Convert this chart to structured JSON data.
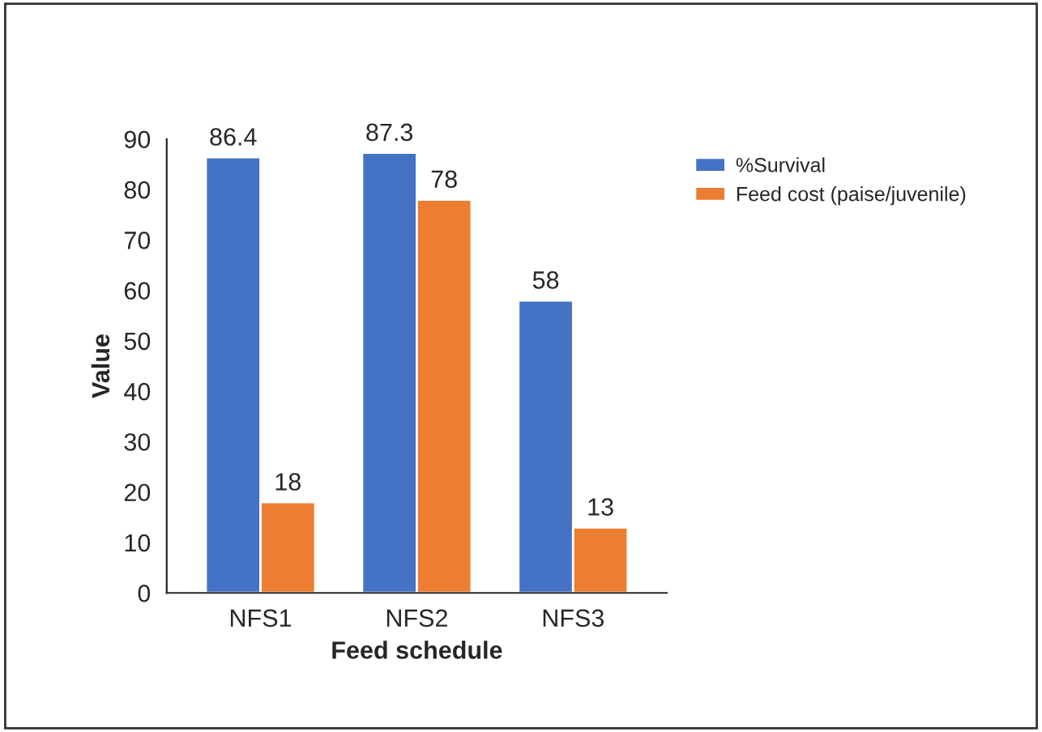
{
  "chart_data": {
    "type": "bar",
    "xlabel": "Feed schedule",
    "ylabel": "Value",
    "categories": [
      "NFS1",
      "NFS2",
      "NFS3"
    ],
    "series": [
      {
        "name": "%Survival",
        "color": "#4472c4",
        "values": [
          86.4,
          87.3,
          58
        ]
      },
      {
        "name": "Feed cost (paise/juvenile)",
        "color": "#ed7d31",
        "values": [
          18,
          78,
          13
        ]
      }
    ],
    "ylim": [
      0,
      90
    ],
    "yticks": [
      0,
      10,
      20,
      30,
      40,
      50,
      60,
      70,
      80,
      90
    ],
    "data_labels": true,
    "grid": false,
    "legend": "top right"
  }
}
